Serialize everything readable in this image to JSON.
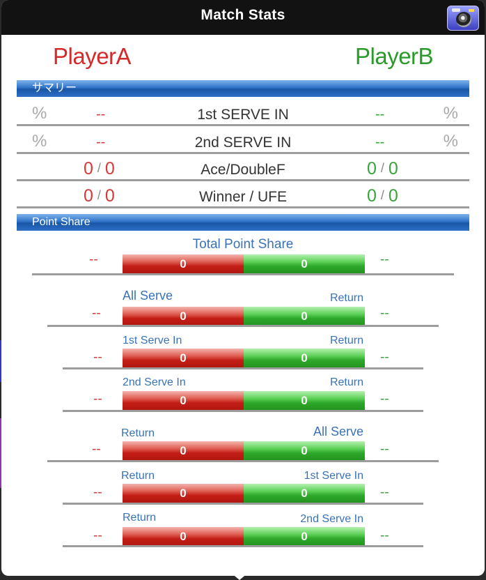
{
  "header": {
    "title": "Match Stats",
    "camera_icon": "camera-icon"
  },
  "players": {
    "a": "PlayerA",
    "b": "PlayerB"
  },
  "colors": {
    "player_a": "#d42a2a",
    "player_b": "#2a9a2a",
    "section": "#2f72c8",
    "link": "#3a72b8"
  },
  "summary": {
    "title": "サマリー",
    "rows": [
      {
        "label": "1st SERVE IN",
        "a": "--",
        "b": "--",
        "a_unit": "%",
        "b_unit": "%"
      },
      {
        "label": "2nd SERVE IN",
        "a": "--",
        "b": "--",
        "a_unit": "%",
        "b_unit": "%"
      },
      {
        "label": "Ace/DoubleF",
        "a1": "0",
        "a2": "0",
        "b1": "0",
        "b2": "0",
        "sep": "/"
      },
      {
        "label": "Winner / UFE",
        "a1": "0",
        "a2": "0",
        "b1": "0",
        "b2": "0",
        "sep": "/"
      }
    ]
  },
  "point_share": {
    "title": "Point Share",
    "total": {
      "label": "Total Point Share",
      "a_pct": "--",
      "b_pct": "--",
      "a_val": "0",
      "b_val": "0"
    },
    "rows": [
      {
        "left": "All Serve",
        "right": "Return",
        "a_pct": "--",
        "b_pct": "--",
        "a_val": "0",
        "b_val": "0"
      },
      {
        "left": "1st Serve In",
        "right": "Return",
        "a_pct": "--",
        "b_pct": "--",
        "a_val": "0",
        "b_val": "0"
      },
      {
        "left": "2nd Serve In",
        "right": "Return",
        "a_pct": "--",
        "b_pct": "--",
        "a_val": "0",
        "b_val": "0"
      },
      {
        "left": "Return",
        "right": "All Serve",
        "a_pct": "--",
        "b_pct": "--",
        "a_val": "0",
        "b_val": "0"
      },
      {
        "left": "Return",
        "right": "1st Serve In",
        "a_pct": "--",
        "b_pct": "--",
        "a_val": "0",
        "b_val": "0"
      },
      {
        "left": "Return",
        "right": "2nd Serve In",
        "a_pct": "--",
        "b_pct": "--",
        "a_val": "0",
        "b_val": "0"
      }
    ]
  }
}
